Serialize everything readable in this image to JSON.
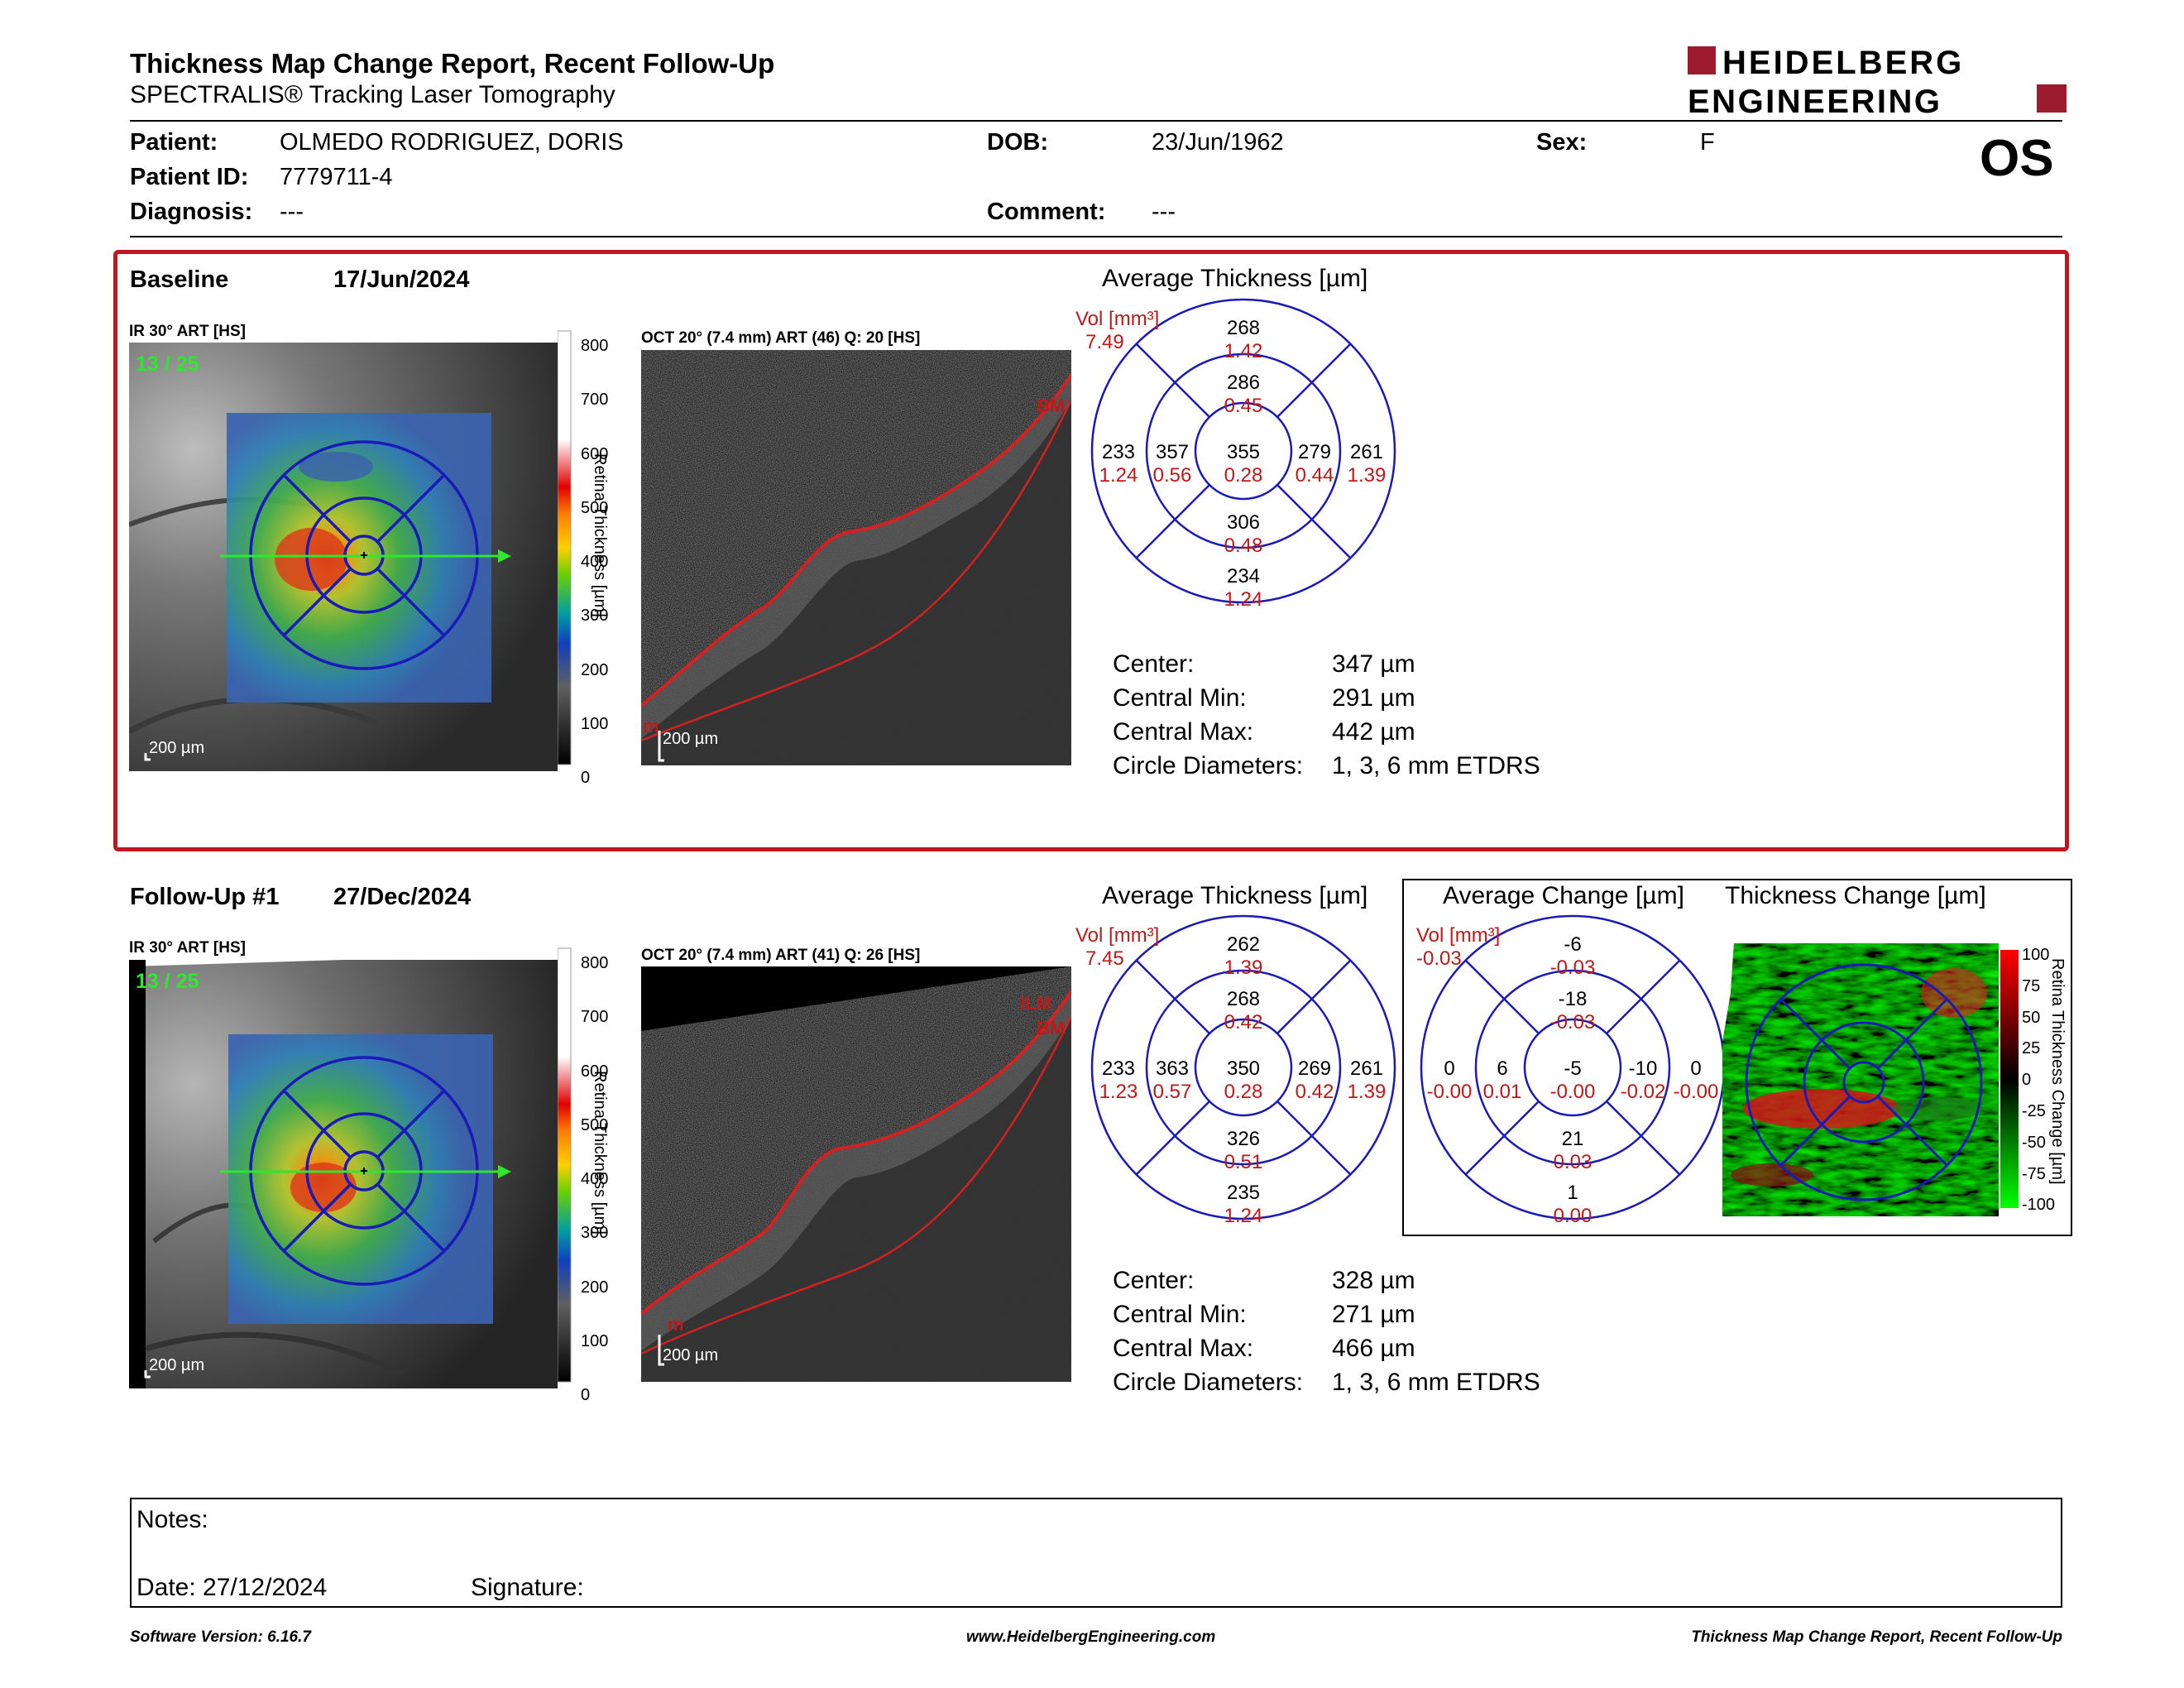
{
  "header": {
    "title": "Thickness Map Change Report, Recent Follow-Up",
    "subtitle": "SPECTRALIS® Tracking Laser Tomography",
    "logo_line1": "HEIDELBERG",
    "logo_line2": "ENGINEERING",
    "eye": "OS",
    "colors": {
      "brand": "#9c1c2e"
    }
  },
  "patient": {
    "patient_label": "Patient:",
    "patient_value": "OLMEDO RODRIGUEZ, DORIS",
    "id_label": "Patient ID:",
    "id_value": "7779711-4",
    "diagnosis_label": "Diagnosis:",
    "diagnosis_value": "---",
    "dob_label": "DOB:",
    "dob_value": "23/Jun/1962",
    "comment_label": "Comment:",
    "comment_value": "---",
    "sex_label": "Sex:",
    "sex_value": "F"
  },
  "baseline": {
    "label": "Baseline",
    "date": "17/Jun/2024",
    "ir_label": "IR 30° ART [HS]",
    "frame_count": "13 / 25",
    "scale_label": "200 µm",
    "colorbar_ticks": [
      "800",
      "700",
      "600",
      "500",
      "400",
      "300",
      "200",
      "100",
      "0"
    ],
    "colorbar_title": "Retina Thickness [µm]",
    "oct_label": "OCT 20° (7.4 mm) ART (46) Q: 20 [HS]",
    "oct_layer_labels": [
      "BM",
      "m"
    ],
    "avg_title": "Average Thickness [µm]",
    "vol_label": "Vol [mm³]",
    "vol_value": "7.49",
    "etdrs": {
      "outer_top": {
        "t": "268",
        "v": "1.42"
      },
      "inner_top": {
        "t": "286",
        "v": "0.45"
      },
      "outer_left": {
        "t": "233",
        "v": "1.24"
      },
      "inner_left": {
        "t": "357",
        "v": "0.56"
      },
      "center": {
        "t": "355",
        "v": "0.28"
      },
      "inner_right": {
        "t": "279",
        "v": "0.44"
      },
      "outer_right": {
        "t": "261",
        "v": "1.39"
      },
      "inner_bottom": {
        "t": "306",
        "v": "0.48"
      },
      "outer_bottom": {
        "t": "234",
        "v": "1.24"
      }
    },
    "stats": {
      "center_label": "Center:",
      "center_value": "347 µm",
      "min_label": "Central Min:",
      "min_value": "291 µm",
      "max_label": "Central Max:",
      "max_value": "442 µm",
      "diam_label": "Circle Diameters:",
      "diam_value": "1, 3, 6 mm ETDRS"
    }
  },
  "followup": {
    "label": "Follow-Up #1",
    "date": "27/Dec/2024",
    "ir_label": "IR 30° ART [HS]",
    "frame_count": "13 / 25",
    "scale_label": "200 µm",
    "colorbar_ticks": [
      "800",
      "700",
      "600",
      "500",
      "400",
      "300",
      "200",
      "100",
      "0"
    ],
    "colorbar_title": "Retina Thickness [µm]",
    "oct_label": "OCT 20° (7.4 mm) ART (41) Q: 26 [HS]",
    "oct_layer_labels": [
      "ILM",
      "BM",
      "m"
    ],
    "avg_title": "Average Thickness [µm]",
    "vol_label": "Vol [mm³]",
    "vol_value": "7.45",
    "etdrs": {
      "outer_top": {
        "t": "262",
        "v": "1.39"
      },
      "inner_top": {
        "t": "268",
        "v": "0.42"
      },
      "outer_left": {
        "t": "233",
        "v": "1.23"
      },
      "inner_left": {
        "t": "363",
        "v": "0.57"
      },
      "center": {
        "t": "350",
        "v": "0.28"
      },
      "inner_right": {
        "t": "269",
        "v": "0.42"
      },
      "outer_right": {
        "t": "261",
        "v": "1.39"
      },
      "inner_bottom": {
        "t": "326",
        "v": "0.51"
      },
      "outer_bottom": {
        "t": "235",
        "v": "1.24"
      }
    },
    "stats": {
      "center_label": "Center:",
      "center_value": "328 µm",
      "min_label": "Central Min:",
      "min_value": "271 µm",
      "max_label": "Central Max:",
      "max_value": "466 µm",
      "diam_label": "Circle Diameters:",
      "diam_value": "1, 3, 6 mm ETDRS"
    }
  },
  "change": {
    "avg_title": "Average Change [µm]",
    "map_title": "Thickness Change [µm]",
    "vol_label": "Vol [mm³]",
    "vol_value": "-0.03",
    "colorbar_ticks": [
      "100",
      "75",
      "50",
      "25",
      "0",
      "-25",
      "-50",
      "-75",
      "-100"
    ],
    "colorbar_title": "Retina Thickness Change [µm]",
    "etdrs": {
      "outer_top": {
        "t": "-6",
        "v": "-0.03"
      },
      "inner_top": {
        "t": "-18",
        "v": "-0.03"
      },
      "outer_left": {
        "t": "0",
        "v": "-0.00"
      },
      "inner_left": {
        "t": "6",
        "v": "0.01"
      },
      "center": {
        "t": "-5",
        "v": "-0.00"
      },
      "inner_right": {
        "t": "-10",
        "v": "-0.02"
      },
      "outer_right": {
        "t": "0",
        "v": "-0.00"
      },
      "inner_bottom": {
        "t": "21",
        "v": "0.03"
      },
      "outer_bottom": {
        "t": "1",
        "v": "0.00"
      }
    }
  },
  "notes": {
    "notes_label": "Notes:",
    "date_label": "Date: 27/12/2024",
    "signature_label": "Signature:"
  },
  "footer": {
    "software": "Software Version: 6.16.7",
    "website": "www.HeidelbergEngineering.com",
    "report_name": "Thickness Map Change Report, Recent Follow-Up"
  }
}
